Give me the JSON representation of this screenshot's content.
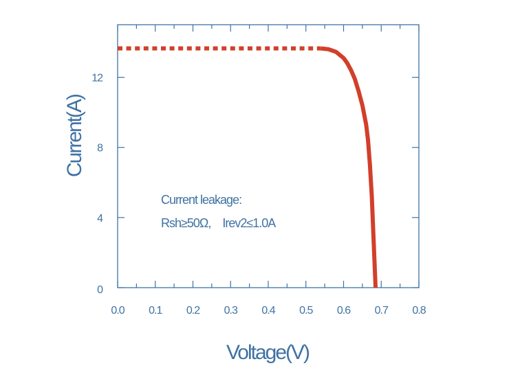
{
  "chart_data": {
    "type": "line",
    "title": "",
    "xlabel": "Voltage(V)",
    "ylabel": "Current(A)",
    "xlim": [
      0,
      0.8
    ],
    "ylim": [
      0,
      15
    ],
    "x_ticks": [
      0.0,
      0.1,
      0.2,
      0.3,
      0.4,
      0.5,
      0.6,
      0.7,
      0.8
    ],
    "x_tick_labels": [
      "0.0",
      "0.1",
      "0.2",
      "0.3",
      "0.4",
      "0.5",
      "0.6",
      "0.7",
      "0.8"
    ],
    "y_ticks": [
      0,
      4,
      8,
      12
    ],
    "y_tick_labels": [
      "0",
      "4",
      "8",
      "12"
    ],
    "grid": false,
    "legend": "none",
    "series": [
      {
        "color": "#d23f2a",
        "x": [
          0.0,
          0.1,
          0.2,
          0.3,
          0.4,
          0.5,
          0.54,
          0.56,
          0.58,
          0.6,
          0.61,
          0.62,
          0.63,
          0.64,
          0.65,
          0.66,
          0.665,
          0.67,
          0.675,
          0.68,
          0.685
        ],
        "y": [
          13.65,
          13.65,
          13.65,
          13.65,
          13.65,
          13.65,
          13.65,
          13.6,
          13.45,
          13.1,
          12.8,
          12.4,
          11.9,
          11.2,
          10.4,
          9.3,
          8.4,
          7.0,
          5.2,
          2.6,
          0.0
        ]
      }
    ],
    "annotations": [
      "Current leakage:",
      "Rsh≥50Ω,　Irev2≤1.0A"
    ]
  }
}
